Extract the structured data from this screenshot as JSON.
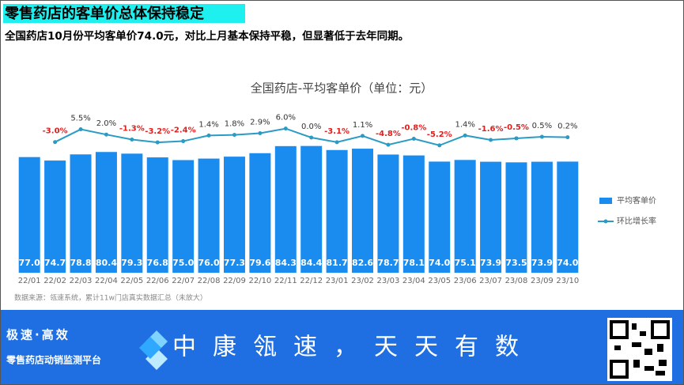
{
  "header": {
    "title": "零售药店的客单价总体保持稳定",
    "subtitle": "全国药店10月份平均客单价74.0元，对比上月基本保持平稳，但显著低于去年同期。"
  },
  "chart_data": {
    "type": "bar",
    "title": "全国药店-平均客单价（单位：元）",
    "note": "数据来源：瓴速系统，累计11w门店真实数据汇总（未放大）",
    "categories": [
      "22/01",
      "22/02",
      "22/03",
      "22/04",
      "22/05",
      "22/06",
      "22/07",
      "22/08",
      "22/09",
      "22/10",
      "22/11",
      "22/12",
      "23/01",
      "23/02",
      "23/03",
      "23/04",
      "23/05",
      "23/06",
      "23/07",
      "23/08",
      "23/09",
      "23/10"
    ],
    "ylim": [
      0,
      100
    ],
    "y2lim": [
      -90,
      10
    ],
    "legend": "right",
    "series": [
      {
        "name": "平均客单价",
        "type": "bar",
        "axis": "y",
        "color": "#1a8cf0",
        "values": [
          77.0,
          74.7,
          78.8,
          80.4,
          79.3,
          76.8,
          75.0,
          76.0,
          77.3,
          79.6,
          84.3,
          84.4,
          81.7,
          82.6,
          78.7,
          78.1,
          74.0,
          75.1,
          73.9,
          73.5,
          73.9,
          74.0
        ],
        "value_labels": [
          "77.0",
          "74.7",
          "78.8",
          "80.4",
          "79.3",
          "76.8",
          "75.0",
          "76.0",
          "77.3",
          "79.6",
          "84.3",
          "84.4",
          "81.7",
          "82.6",
          "78.7",
          "78.1",
          "74.0",
          "75.1",
          "73.9",
          "73.5",
          "73.9",
          "74.0"
        ]
      },
      {
        "name": "环比增长率",
        "type": "line",
        "axis": "y2",
        "color": "#2a9bc4",
        "values": [
          null,
          -3.0,
          5.5,
          2.0,
          -1.3,
          -3.2,
          -2.4,
          1.4,
          1.8,
          2.9,
          6.0,
          0.0,
          -3.1,
          1.1,
          -4.8,
          -0.8,
          -5.2,
          1.4,
          -1.6,
          -0.5,
          0.5,
          0.2
        ],
        "value_labels": [
          null,
          "-3.0%",
          "5.5%",
          "2.0%",
          "-1.3%",
          "-3.2%",
          "-2.4%",
          "1.4%",
          "1.8%",
          "2.9%",
          "6.0%",
          "0.0%",
          "-3.1%",
          "1.1%",
          "-4.8%",
          "-0.8%",
          "-5.2%",
          "1.4%",
          "-1.6%",
          "-0.5%",
          "0.5%",
          "0.2%"
        ]
      }
    ]
  },
  "footer": {
    "slogan": "极速·高效",
    "platform": "零售药店动销监测平台",
    "motto": "中康瓴速，天天有数"
  }
}
